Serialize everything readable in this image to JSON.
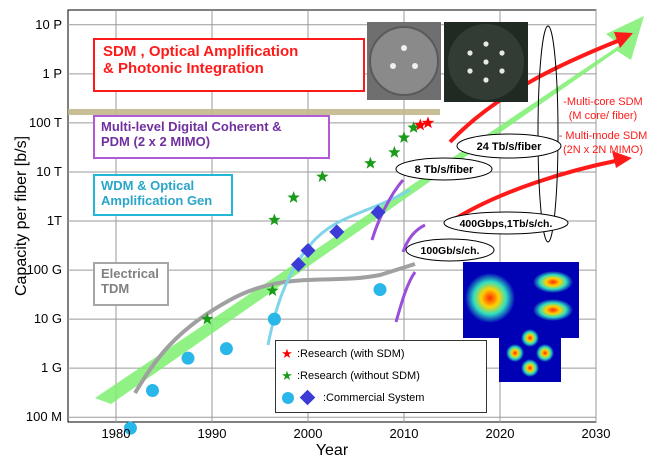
{
  "chart_data": {
    "type": "scatter",
    "xlabel": "Year",
    "ylabel": "Capacity per fiber [b/s]",
    "xlim": [
      1975,
      2030
    ],
    "x_ticks": [
      "1980",
      "1990",
      "2000",
      "2010",
      "2020",
      "2030"
    ],
    "y_ticks": [
      "10 P",
      "1 P",
      "100 T",
      "10 T",
      "1T",
      "100 G",
      "10 G",
      "1 G",
      "100 M"
    ],
    "y_scale": "log",
    "ylim": [
      80000000.0,
      2e+16
    ],
    "grid": true,
    "eras": [
      {
        "line1": "SDM , Optical Amplification",
        "line2": "&  Photonic Integration",
        "color": "#ff1a1a"
      },
      {
        "line1": "Multi-level Digital Coherent &",
        "line2": "PDM (2 x 2 MIMO)",
        "color": "#7030a0"
      },
      {
        "line1": "WDM & Optical",
        "line2": "Amplification Gen",
        "color": "#29a5c9"
      },
      {
        "line1": "Electrical",
        "line2": "TDM",
        "color": "#808080"
      }
    ],
    "series": [
      {
        "name": ":Research (with SDM)",
        "marker": "star",
        "color": "#ff0000",
        "x": [
          2011.7,
          2012.5
        ],
        "y": [
          90000000000000.0,
          100000000000000.0
        ]
      },
      {
        "name": ":Research (without SDM)",
        "marker": "star",
        "color": "#1a9c1a",
        "x": [
          1989.5,
          1996.3,
          1996.5,
          1998.5,
          2001.5,
          2006.5,
          2009.0,
          2010.0,
          2011.0
        ],
        "y": [
          10000000000.0,
          38000000000.0,
          1050000000000.0,
          3000000000000.0,
          8000000000000.0,
          15000000000000.0,
          25000000000000.0,
          50000000000000.0,
          80000000000000.0
        ]
      },
      {
        "name": ":Commercial  System",
        "marker": "circle",
        "color": "#29b6e8",
        "x": [
          1981.5,
          1983.8,
          1987.5,
          1991.5,
          1996.5,
          2007.5
        ],
        "y": [
          60000000.0,
          350000000.0,
          1600000000.0,
          2500000000.0,
          10000000000.0,
          40000000000.0
        ]
      },
      {
        "name": "",
        "marker": "diamond",
        "color": "#3b3bd6",
        "x": [
          1999.0,
          2000.0,
          2003.0,
          2007.3
        ],
        "y": [
          130000000000.0,
          250000000000.0,
          600000000000.0,
          1500000000000.0
        ]
      }
    ],
    "annotations": [
      "8 Tb/s/fiber",
      "24 Tb/s/fiber",
      "400Gbps,1Tb/s/ch.",
      "100Gb/s/ch."
    ],
    "notes": [
      {
        "line1": "-Multi-core SDM",
        "line2": "(M core/ fiber)"
      },
      {
        "line1": "- Multi-mode SDM",
        "line2": "(2N x 2N MIMO)"
      }
    ]
  },
  "colors": {
    "trend_arrow": "#7cf06f",
    "reference_line": "#c4b98c",
    "sdm_red": "#ff1a1a"
  }
}
